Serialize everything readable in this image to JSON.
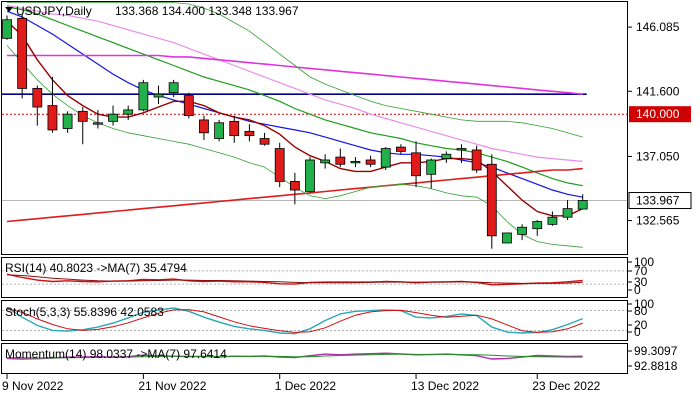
{
  "header": {
    "symbol": "USDJPY,Daily",
    "ohlc": "133.368 134.400 133.348 133.967"
  },
  "colors": {
    "up": "#22b04a",
    "down": "#e01b1b",
    "border": "#000000",
    "ma_blue": "#1414e6",
    "ma_green": "#1f9c1f",
    "ma_violet": "#e033e0",
    "ma_pink": "#e88ee8",
    "ma_red": "#e01b1b",
    "ma_dark": "#990000",
    "band_green": "#33a033",
    "hline_blue": "#000080",
    "level_red": "#d00000",
    "rsi_red": "#d01010",
    "stoch_teal": "#2aa7b8",
    "stoch_red": "#d01010",
    "mom_violet": "#b030b0",
    "mom_green": "#209020"
  },
  "chart_data": {
    "type": "candlestick",
    "y_ticks": [
      "146.085",
      "141.600",
      "137.050",
      "132.565"
    ],
    "ylim": [
      130.3,
      147.7
    ],
    "x_labels": [
      "9 Nov 2022",
      "21 Nov 2022",
      "1 Dec 2022",
      "13 Dec 2022",
      "23 Dec 2022"
    ],
    "x_label_index": [
      0,
      9,
      18,
      27,
      35
    ],
    "candles": [
      {
        "o": 145.3,
        "h": 146.9,
        "l": 145.2,
        "c": 146.6
      },
      {
        "o": 146.7,
        "h": 147.0,
        "l": 141.1,
        "c": 141.8
      },
      {
        "o": 141.8,
        "h": 142.0,
        "l": 139.2,
        "c": 140.5
      },
      {
        "o": 140.6,
        "h": 142.6,
        "l": 138.7,
        "c": 138.9
      },
      {
        "o": 139.0,
        "h": 140.2,
        "l": 138.7,
        "c": 140.0
      },
      {
        "o": 140.2,
        "h": 140.5,
        "l": 137.9,
        "c": 139.5
      },
      {
        "o": 139.3,
        "h": 140.3,
        "l": 139.0,
        "c": 139.4
      },
      {
        "o": 139.5,
        "h": 140.6,
        "l": 139.2,
        "c": 140.0
      },
      {
        "o": 140.0,
        "h": 140.6,
        "l": 139.6,
        "c": 140.3
      },
      {
        "o": 140.3,
        "h": 142.4,
        "l": 140.2,
        "c": 142.2
      },
      {
        "o": 141.2,
        "h": 142.0,
        "l": 140.7,
        "c": 141.4
      },
      {
        "o": 141.5,
        "h": 142.4,
        "l": 141.2,
        "c": 142.2
      },
      {
        "o": 141.3,
        "h": 141.5,
        "l": 139.7,
        "c": 139.9
      },
      {
        "o": 139.6,
        "h": 139.9,
        "l": 138.2,
        "c": 138.7
      },
      {
        "o": 138.3,
        "h": 139.6,
        "l": 138.1,
        "c": 139.4
      },
      {
        "o": 139.5,
        "h": 139.9,
        "l": 138.0,
        "c": 138.5
      },
      {
        "o": 138.8,
        "h": 139.3,
        "l": 138.1,
        "c": 138.5
      },
      {
        "o": 138.3,
        "h": 138.7,
        "l": 137.8,
        "c": 137.9
      },
      {
        "o": 137.6,
        "h": 138.0,
        "l": 134.9,
        "c": 135.3
      },
      {
        "o": 135.3,
        "h": 135.9,
        "l": 133.7,
        "c": 134.7
      },
      {
        "o": 134.6,
        "h": 137.0,
        "l": 134.5,
        "c": 136.8
      },
      {
        "o": 136.6,
        "h": 137.2,
        "l": 136.2,
        "c": 136.8
      },
      {
        "o": 137.0,
        "h": 137.6,
        "l": 136.3,
        "c": 136.5
      },
      {
        "o": 136.6,
        "h": 137.0,
        "l": 136.3,
        "c": 136.7
      },
      {
        "o": 136.8,
        "h": 137.1,
        "l": 136.3,
        "c": 136.5
      },
      {
        "o": 136.3,
        "h": 137.7,
        "l": 136.1,
        "c": 137.6
      },
      {
        "o": 137.7,
        "h": 137.9,
        "l": 137.2,
        "c": 137.4
      },
      {
        "o": 137.3,
        "h": 138.1,
        "l": 134.9,
        "c": 135.7
      },
      {
        "o": 135.8,
        "h": 136.9,
        "l": 134.8,
        "c": 136.8
      },
      {
        "o": 136.9,
        "h": 137.4,
        "l": 136.6,
        "c": 137.2
      },
      {
        "o": 137.5,
        "h": 137.9,
        "l": 136.6,
        "c": 137.6
      },
      {
        "o": 137.5,
        "h": 137.8,
        "l": 135.9,
        "c": 136.1
      },
      {
        "o": 136.5,
        "h": 137.2,
        "l": 130.6,
        "c": 131.5
      },
      {
        "o": 131.0,
        "h": 131.7,
        "l": 131.0,
        "c": 131.7
      },
      {
        "o": 131.6,
        "h": 132.3,
        "l": 131.2,
        "c": 132.1
      },
      {
        "o": 132.0,
        "h": 132.6,
        "l": 131.5,
        "c": 132.5
      },
      {
        "o": 132.3,
        "h": 133.2,
        "l": 132.2,
        "c": 132.8
      },
      {
        "o": 132.8,
        "h": 134.0,
        "l": 132.6,
        "c": 133.4
      },
      {
        "o": 133.37,
        "h": 134.4,
        "l": 133.35,
        "c": 133.97
      }
    ],
    "lines": [
      {
        "name": "ma_blue",
        "color": "#1414e6",
        "width": 1.2,
        "start": 0,
        "values": [
          147.2,
          146.8,
          146.2,
          145.6,
          144.9,
          144.2,
          143.5,
          142.8,
          142.2,
          141.7,
          141.3,
          141.0,
          140.7,
          140.4,
          140.1,
          139.8,
          139.5,
          139.3,
          139.1,
          138.9,
          138.7,
          138.4,
          138.1,
          137.8,
          137.5,
          137.3,
          137.2,
          137.2,
          137.1,
          137.0,
          136.8,
          136.6,
          136.3,
          135.9,
          135.5,
          135.1,
          134.7,
          134.4,
          134.2
        ]
      },
      {
        "name": "ma_green",
        "color": "#1f9c1f",
        "width": 1.2,
        "start": 0,
        "values": [
          147.5,
          147.3,
          147.0,
          146.6,
          146.2,
          145.8,
          145.4,
          145.0,
          144.6,
          144.2,
          143.8,
          143.4,
          143.0,
          142.6,
          142.3,
          142.0,
          141.7,
          141.3,
          140.9,
          140.4,
          140.0,
          139.6,
          139.3,
          139.0,
          138.7,
          138.5,
          138.3,
          138.0,
          137.8,
          137.6,
          137.5,
          137.3,
          137.0,
          136.7,
          136.3,
          135.9,
          135.5,
          135.2,
          135.0
        ]
      },
      {
        "name": "ma_pink",
        "color": "#e88ee8",
        "width": 1.2,
        "start": 0,
        "values": [
          147.6,
          147.4,
          147.2,
          147.0,
          146.9,
          146.7,
          146.5,
          146.2,
          145.9,
          145.6,
          145.3,
          145.0,
          144.6,
          144.2,
          143.8,
          143.4,
          143.0,
          142.6,
          142.2,
          141.8,
          141.4,
          141.0,
          140.7,
          140.4,
          140.0,
          139.7,
          139.4,
          139.1,
          138.8,
          138.5,
          138.2,
          137.9,
          137.6,
          137.4,
          137.2,
          137.0,
          136.9,
          136.8,
          136.7
        ]
      },
      {
        "name": "ma_violet",
        "color": "#e033e0",
        "width": 1.6,
        "start": 0,
        "values": [
          144.1,
          144.1,
          144.1,
          144.1,
          144.1,
          144.1,
          144.1,
          144.1,
          144.1,
          144.1,
          144.1,
          144.0,
          144.0,
          143.9,
          143.8,
          143.7,
          143.6,
          143.5,
          143.4,
          143.3,
          143.2,
          143.1,
          143.0,
          142.9,
          142.8,
          142.7,
          142.6,
          142.5,
          142.4,
          142.3,
          142.2,
          142.1,
          142.0,
          141.9,
          141.8,
          141.7,
          141.6,
          141.5,
          141.4
        ]
      },
      {
        "name": "ma_red",
        "color": "#e01b1b",
        "width": 1.6,
        "start": 0,
        "values": [
          132.5,
          132.6,
          132.7,
          132.8,
          132.9,
          133.0,
          133.1,
          133.2,
          133.3,
          133.4,
          133.5,
          133.6,
          133.7,
          133.8,
          133.9,
          134.0,
          134.1,
          134.2,
          134.3,
          134.4,
          134.5,
          134.6,
          134.7,
          134.8,
          134.9,
          135.0,
          135.1,
          135.2,
          135.3,
          135.4,
          135.5,
          135.6,
          135.7,
          135.8,
          135.9,
          136.0,
          136.1,
          136.1,
          136.2
        ]
      },
      {
        "name": "ma_dark",
        "color": "#990000",
        "width": 1.4,
        "start": 0,
        "values": [
          146.5,
          145.5,
          143.8,
          142.4,
          141.3,
          140.6,
          140.0,
          139.8,
          139.8,
          140.1,
          140.5,
          140.9,
          140.9,
          140.6,
          140.1,
          139.8,
          139.6,
          139.2,
          138.6,
          137.7,
          137.1,
          136.7,
          136.2,
          136.0,
          136.0,
          136.3,
          136.6,
          136.6,
          136.7,
          136.9,
          136.9,
          136.8,
          136.0,
          135.0,
          134.0,
          133.2,
          132.9,
          132.9,
          133.4
        ]
      },
      {
        "name": "band_upper",
        "color": "#33a033",
        "width": 0.8,
        "start": 0,
        "values": [
          147.8,
          147.8,
          147.8,
          147.8,
          147.8,
          147.8,
          147.8,
          147.8,
          147.8,
          147.8,
          147.8,
          147.8,
          147.7,
          147.4,
          147.0,
          146.4,
          145.8,
          145.0,
          144.2,
          143.4,
          142.6,
          142.1,
          141.7,
          141.3,
          140.9,
          140.6,
          140.4,
          140.2,
          140.0,
          139.8,
          139.6,
          139.5,
          139.5,
          139.5,
          139.4,
          139.2,
          139.0,
          138.7,
          138.4
        ]
      },
      {
        "name": "band_lower",
        "color": "#33a033",
        "width": 0.8,
        "start": 0,
        "values": [
          144.8,
          143.6,
          142.4,
          141.4,
          140.6,
          139.9,
          139.4,
          139.0,
          138.7,
          138.5,
          138.3,
          138.1,
          137.9,
          137.6,
          137.3,
          137.0,
          136.6,
          136.3,
          135.6,
          134.9,
          134.3,
          134.1,
          134.3,
          134.6,
          134.9,
          135.0,
          135.1,
          135.0,
          134.8,
          134.5,
          134.3,
          134.2,
          133.6,
          132.5,
          131.6,
          131.1,
          130.9,
          130.8,
          130.7
        ]
      }
    ],
    "hline_blue": 141.4,
    "level_line": {
      "label": "140.000",
      "value": 140.0
    },
    "price_box": {
      "label": "133.967",
      "value": 133.967
    },
    "panels": [
      {
        "id": "rsi",
        "label": "RSI(14) 40.8023   ->MA(7) 35.4794",
        "ticks": [
          "100",
          "70",
          "30",
          "0"
        ],
        "ylim": [
          0,
          100
        ],
        "dashed_levels": [
          70,
          30
        ],
        "series": [
          {
            "color": "#d01010",
            "values": [
              60,
              50,
              42,
              38,
              40,
              38,
              37,
              39,
              40,
              44,
              43,
              45,
              40,
              38,
              39,
              37,
              37,
              35,
              31,
              30,
              35,
              36,
              36,
              36,
              36,
              38,
              37,
              34,
              36,
              37,
              38,
              35,
              28,
              29,
              31,
              33,
              34,
              37,
              40.8
            ]
          },
          {
            "color": "#8a1010",
            "values": [
              58,
              56,
              52,
              48,
              45,
              42,
              40,
              39,
              39,
              40,
              41,
              42,
              42,
              41,
              41,
              40,
              39,
              38,
              37,
              35,
              34,
              34,
              34,
              34,
              35,
              36,
              36,
              36,
              36,
              36,
              37,
              36,
              34,
              33,
              32,
              32,
              32,
              33,
              35.5
            ]
          }
        ]
      },
      {
        "id": "stoch",
        "label": "Stoch(5,3,3) 55.8396 42.0583",
        "ticks": [
          "100",
          "80",
          "20",
          "0"
        ],
        "ylim": [
          0,
          100
        ],
        "dashed_levels": [
          80,
          20
        ],
        "series": [
          {
            "color": "#2aa7b8",
            "values": [
              90,
              60,
              35,
              20,
              18,
              22,
              30,
              42,
              58,
              75,
              82,
              88,
              78,
              60,
              45,
              32,
              25,
              20,
              12,
              10,
              25,
              50,
              70,
              78,
              80,
              82,
              80,
              60,
              58,
              62,
              70,
              65,
              30,
              15,
              12,
              14,
              22,
              38,
              55.8
            ]
          },
          {
            "color": "#d01010",
            "values": [
              85,
              75,
              55,
              38,
              25,
              20,
              23,
              31,
              43,
              58,
              72,
              82,
              83,
              76,
              61,
              46,
              34,
              26,
              19,
              14,
              16,
              28,
              48,
              66,
              76,
              80,
              81,
              74,
              66,
              60,
              63,
              66,
              55,
              37,
              19,
              14,
              16,
              25,
              42.1
            ]
          }
        ]
      },
      {
        "id": "mom",
        "label": "Momentum(14) 98.0337   ->MA(7) 97.6414",
        "ticks": [
          "99.3097",
          "92.8818"
        ],
        "ylim": [
          92.0,
          102.0
        ],
        "dashed_levels": [],
        "series": [
          {
            "color": "#b030b0",
            "values": [
              97.0,
              96.8,
              96.9,
              97.2,
              97.6,
              97.7,
              97.8,
              97.6,
              97.8,
              98.5,
              98.1,
              98.0,
              97.8,
              97.9,
              97.7,
              98.0,
              97.9,
              98.1,
              97.6,
              97.4,
              98.2,
              98.9,
              98.6,
              98.9,
              99.1,
              99.3,
              99.0,
              98.6,
              98.7,
              98.9,
              98.6,
              98.2,
              96.8,
              97.0,
              97.6,
              98.3,
              98.1,
              97.9,
              98.0
            ]
          },
          {
            "color": "#209020",
            "values": [
              97.4,
              97.3,
              97.2,
              97.2,
              97.3,
              97.4,
              97.5,
              97.5,
              97.6,
              97.8,
              97.9,
              98.0,
              98.0,
              97.9,
              97.9,
              97.9,
              97.9,
              97.9,
              97.9,
              97.8,
              97.8,
              98.1,
              98.3,
              98.5,
              98.6,
              98.8,
              98.9,
              98.8,
              98.8,
              98.8,
              98.7,
              98.6,
              98.4,
              98.1,
              97.9,
              97.8,
              97.7,
              97.6,
              97.6
            ]
          }
        ]
      }
    ]
  }
}
